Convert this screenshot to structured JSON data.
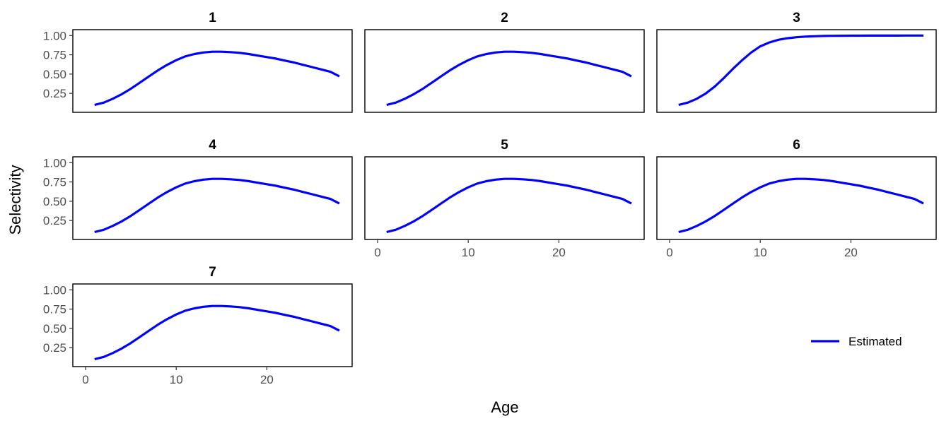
{
  "chart_data": {
    "type": "line",
    "xlabel": "Age",
    "ylabel": "Selectivity",
    "xlim": [
      0,
      28
    ],
    "ylim": [
      0.05,
      1.03
    ],
    "x_ticks": [
      0,
      10,
      20
    ],
    "y_ticks": [
      0.25,
      0.5,
      0.75,
      1.0
    ],
    "y_tick_labels": [
      "0.25",
      "0.50",
      "0.75",
      "1.00"
    ],
    "legend": {
      "position": "bottom-right",
      "entries": [
        "Estimated"
      ]
    },
    "series_color": "#0000ff",
    "grid": false,
    "x": [
      1,
      2,
      3,
      4,
      5,
      6,
      7,
      8,
      9,
      10,
      11,
      12,
      13,
      14,
      15,
      16,
      17,
      18,
      19,
      20,
      21,
      22,
      23,
      24,
      25,
      26,
      27,
      28
    ],
    "panels": [
      {
        "title": "1",
        "series": [
          {
            "name": "Estimated",
            "values": [
              0.1,
              0.13,
              0.18,
              0.24,
              0.31,
              0.39,
              0.47,
              0.55,
              0.62,
              0.68,
              0.73,
              0.76,
              0.78,
              0.79,
              0.79,
              0.785,
              0.775,
              0.76,
              0.74,
              0.72,
              0.7,
              0.675,
              0.65,
              0.62,
              0.59,
              0.56,
              0.53,
              0.47
            ]
          }
        ]
      },
      {
        "title": "2",
        "series": [
          {
            "name": "Estimated",
            "values": [
              0.1,
              0.13,
              0.18,
              0.24,
              0.31,
              0.39,
              0.47,
              0.55,
              0.62,
              0.68,
              0.73,
              0.76,
              0.78,
              0.79,
              0.79,
              0.785,
              0.775,
              0.76,
              0.74,
              0.72,
              0.7,
              0.675,
              0.65,
              0.62,
              0.59,
              0.56,
              0.53,
              0.47
            ]
          }
        ]
      },
      {
        "title": "3",
        "series": [
          {
            "name": "Estimated",
            "values": [
              0.1,
              0.13,
              0.18,
              0.25,
              0.34,
              0.45,
              0.57,
              0.68,
              0.78,
              0.86,
              0.91,
              0.945,
              0.965,
              0.978,
              0.986,
              0.991,
              0.994,
              0.996,
              0.997,
              0.998,
              0.998,
              0.999,
              0.999,
              0.999,
              0.999,
              1.0,
              1.0,
              1.0
            ]
          }
        ]
      },
      {
        "title": "4",
        "series": [
          {
            "name": "Estimated",
            "values": [
              0.1,
              0.13,
              0.18,
              0.24,
              0.31,
              0.39,
              0.47,
              0.55,
              0.62,
              0.68,
              0.73,
              0.76,
              0.78,
              0.79,
              0.79,
              0.785,
              0.775,
              0.76,
              0.74,
              0.72,
              0.7,
              0.675,
              0.65,
              0.62,
              0.59,
              0.56,
              0.53,
              0.47
            ]
          }
        ]
      },
      {
        "title": "5",
        "series": [
          {
            "name": "Estimated",
            "values": [
              0.1,
              0.13,
              0.18,
              0.24,
              0.31,
              0.39,
              0.47,
              0.55,
              0.62,
              0.68,
              0.73,
              0.76,
              0.78,
              0.79,
              0.79,
              0.785,
              0.775,
              0.76,
              0.74,
              0.72,
              0.7,
              0.675,
              0.65,
              0.62,
              0.59,
              0.56,
              0.53,
              0.47
            ]
          }
        ]
      },
      {
        "title": "6",
        "series": [
          {
            "name": "Estimated",
            "values": [
              0.1,
              0.13,
              0.18,
              0.24,
              0.31,
              0.39,
              0.47,
              0.55,
              0.62,
              0.68,
              0.73,
              0.76,
              0.78,
              0.79,
              0.79,
              0.785,
              0.775,
              0.76,
              0.74,
              0.72,
              0.7,
              0.675,
              0.65,
              0.62,
              0.59,
              0.56,
              0.53,
              0.47
            ]
          }
        ]
      },
      {
        "title": "7",
        "series": [
          {
            "name": "Estimated",
            "values": [
              0.1,
              0.13,
              0.18,
              0.24,
              0.31,
              0.39,
              0.47,
              0.55,
              0.62,
              0.68,
              0.73,
              0.76,
              0.78,
              0.79,
              0.79,
              0.785,
              0.775,
              0.76,
              0.74,
              0.72,
              0.7,
              0.675,
              0.65,
              0.62,
              0.59,
              0.56,
              0.53,
              0.47
            ]
          }
        ]
      }
    ]
  }
}
